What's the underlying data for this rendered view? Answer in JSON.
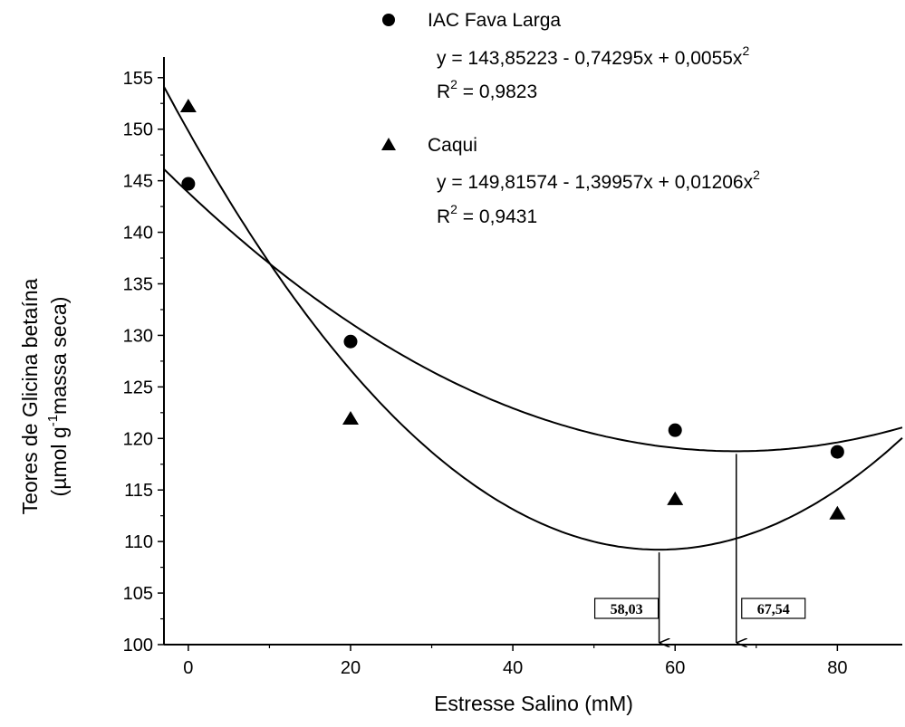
{
  "chart_data": {
    "type": "scatter",
    "xlabel": "Estresse Salino (mM)",
    "ylabel_line1": "Teores de Glicina betaína",
    "ylabel_line2_pre": "(µmol g",
    "ylabel_line2_sup": "-1",
    "ylabel_line2_post": "massa seca)",
    "xlim": [
      -3,
      88
    ],
    "ylim": [
      100,
      157
    ],
    "xticks": [
      0,
      20,
      40,
      60,
      80
    ],
    "yticks": [
      100,
      105,
      110,
      115,
      120,
      125,
      130,
      135,
      140,
      145,
      150,
      155
    ],
    "grid": false,
    "legend_position": "top-right",
    "series": [
      {
        "name": "IAC Fava Larga",
        "marker": "circle",
        "x": [
          0,
          20,
          60,
          80
        ],
        "y": [
          144.7,
          129.4,
          120.8,
          118.7
        ],
        "fit": {
          "a": 143.85223,
          "b": -0.74295,
          "c": 0.0055
        },
        "equation_main": "y = 143,85223 - 0,74295x + 0,0055x",
        "equation_sup": "2",
        "r2_label_pre": "R",
        "r2_label_sup": "2",
        "r2_label_post": " = 0,9823"
      },
      {
        "name": "Caqui",
        "marker": "triangle",
        "x": [
          0,
          20,
          60,
          80
        ],
        "y": [
          152.3,
          122.0,
          114.2,
          112.8
        ],
        "fit": {
          "a": 149.81574,
          "b": -1.39957,
          "c": 0.01206
        },
        "equation_main": "y = 149,81574 - 1,39957x + 0,01206x",
        "equation_sup": "2",
        "r2_label_pre": "R",
        "r2_label_sup": "2",
        "r2_label_post": " = 0,9431"
      }
    ],
    "annotations": [
      {
        "label": "58,03",
        "x": 58.03,
        "series": "Caqui"
      },
      {
        "label": "67,54",
        "x": 67.54,
        "series": "IAC Fava Larga"
      }
    ]
  }
}
